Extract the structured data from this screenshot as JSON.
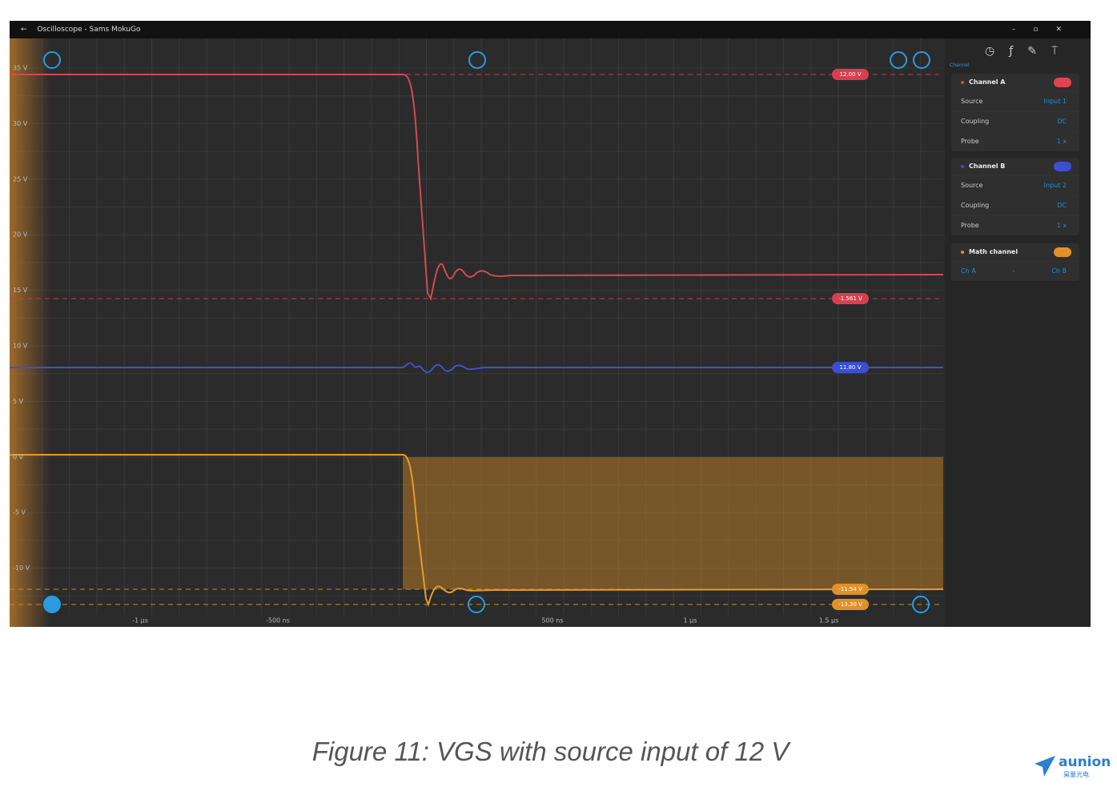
{
  "window": {
    "title": "Oscilloscope - Sams MokuGo"
  },
  "plot": {
    "y_labels": [
      "35 V",
      "30 V",
      "25 V",
      "20 V",
      "15 V",
      "10 V",
      "5 V",
      "0 V",
      "-5 V",
      "-10 V"
    ],
    "x_labels": [
      "-1 μs",
      "-500 ns",
      "500 ns",
      "1 μs",
      "1.5 μs"
    ],
    "markers": [
      "12.00 V",
      "-1.561 V",
      "11.80 V",
      "-11.54 V",
      "-13.30 V"
    ]
  },
  "side_panel": {
    "tab": "Channel",
    "channels": [
      {
        "name": "Channel A",
        "rows": [
          [
            "Source",
            "Input 1"
          ],
          [
            "Coupling",
            "DC"
          ],
          [
            "Probe",
            "1 x"
          ]
        ]
      },
      {
        "name": "Channel B",
        "rows": [
          [
            "Source",
            "Input 2"
          ],
          [
            "Coupling",
            "DC"
          ],
          [
            "Probe",
            "1 x"
          ]
        ]
      },
      {
        "name": "Math channel",
        "rows": [
          [
            "Ch A",
            "-",
            "Ch B"
          ]
        ]
      }
    ]
  },
  "caption": "Figure 11: VGS with source input of 12 V",
  "logo": {
    "name": "aunion",
    "sub": "昊量光电"
  }
}
